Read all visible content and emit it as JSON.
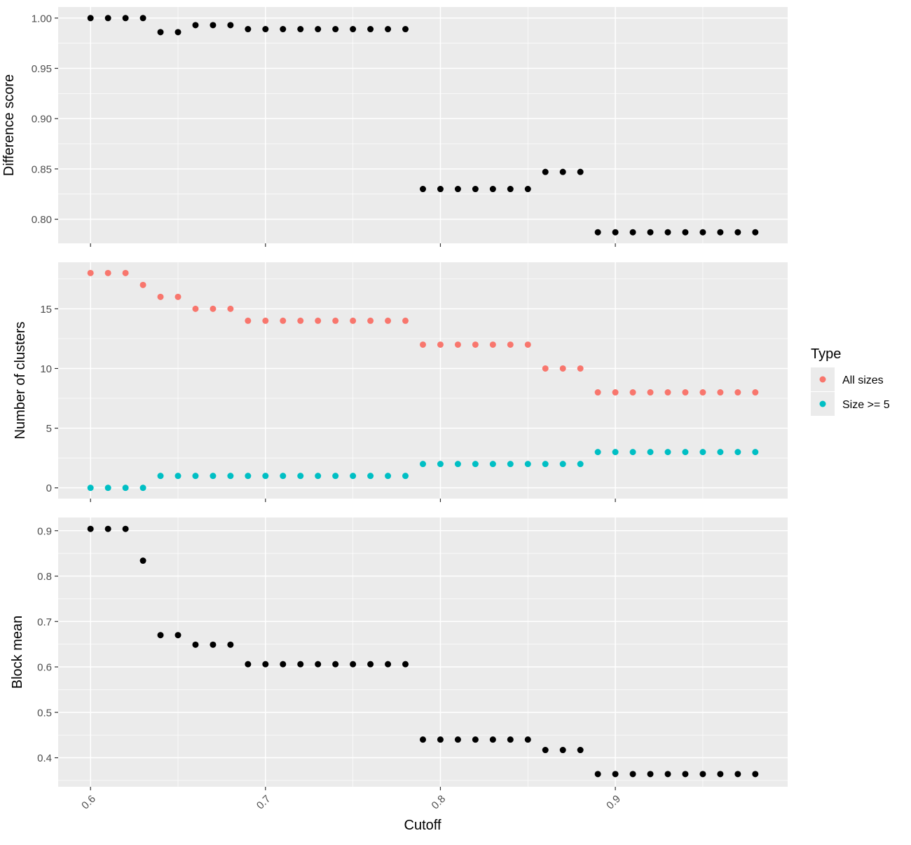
{
  "chart_data": {
    "type": "scatter",
    "x": [
      0.6,
      0.61,
      0.62,
      0.63,
      0.64,
      0.65,
      0.66,
      0.67,
      0.68,
      0.69,
      0.7,
      0.71,
      0.72,
      0.73,
      0.74,
      0.75,
      0.76,
      0.77,
      0.78,
      0.79,
      0.8,
      0.81,
      0.82,
      0.83,
      0.84,
      0.85,
      0.86,
      0.87,
      0.88,
      0.89,
      0.9,
      0.91,
      0.92,
      0.93,
      0.94,
      0.95,
      0.96,
      0.97,
      0.98
    ],
    "xlabel": "Cutoff",
    "xticks": [
      "0.6",
      "0.7",
      "0.8",
      "0.9"
    ],
    "xlim": [
      0.5815,
      0.9985
    ],
    "legend": {
      "title": "Type",
      "placement": "right",
      "entries": [
        {
          "label": "All sizes",
          "color": "#F8766D"
        },
        {
          "label": "Size >= 5",
          "color": "#00BFC4"
        }
      ]
    },
    "panels": [
      {
        "ylabel": "Difference score",
        "ylim": [
          0.776,
          1.011
        ],
        "yticks": [
          "0.80",
          "0.85",
          "0.90",
          "0.95",
          "1.00"
        ],
        "series": [
          {
            "color": "#000000",
            "values": [
              1.0,
              1.0,
              1.0,
              1.0,
              0.986,
              0.986,
              0.993,
              0.993,
              0.993,
              0.989,
              0.989,
              0.989,
              0.989,
              0.989,
              0.989,
              0.989,
              0.989,
              0.989,
              0.989,
              0.83,
              0.83,
              0.83,
              0.83,
              0.83,
              0.83,
              0.83,
              0.847,
              0.847,
              0.847,
              0.787,
              0.787,
              0.787,
              0.787,
              0.787,
              0.787,
              0.787,
              0.787,
              0.787,
              0.787
            ]
          }
        ]
      },
      {
        "ylabel": "Number of clusters",
        "ylim": [
          -0.9,
          18.9
        ],
        "yticks": [
          "0",
          "5",
          "10",
          "15"
        ],
        "series": [
          {
            "name": "All sizes",
            "color": "#F8766D",
            "values": [
              18,
              18,
              18,
              17,
              16,
              16,
              15,
              15,
              15,
              14,
              14,
              14,
              14,
              14,
              14,
              14,
              14,
              14,
              14,
              12,
              12,
              12,
              12,
              12,
              12,
              12,
              10,
              10,
              10,
              8,
              8,
              8,
              8,
              8,
              8,
              8,
              8,
              8,
              8
            ]
          },
          {
            "name": "Size >= 5",
            "color": "#00BFC4",
            "values": [
              0,
              0,
              0,
              0,
              1,
              1,
              1,
              1,
              1,
              1,
              1,
              1,
              1,
              1,
              1,
              1,
              1,
              1,
              1,
              2,
              2,
              2,
              2,
              2,
              2,
              2,
              2,
              2,
              2,
              3,
              3,
              3,
              3,
              3,
              3,
              3,
              3,
              3,
              3
            ]
          }
        ]
      },
      {
        "ylabel": "Block mean",
        "ylim": [
          0.336,
          0.929
        ],
        "yticks": [
          "0.4",
          "0.5",
          "0.6",
          "0.7",
          "0.8",
          "0.9"
        ],
        "series": [
          {
            "color": "#000000",
            "values": [
              0.904,
              0.904,
              0.904,
              0.834,
              0.67,
              0.67,
              0.649,
              0.649,
              0.649,
              0.606,
              0.606,
              0.606,
              0.606,
              0.606,
              0.606,
              0.606,
              0.606,
              0.606,
              0.606,
              0.44,
              0.44,
              0.44,
              0.44,
              0.44,
              0.44,
              0.44,
              0.417,
              0.417,
              0.417,
              0.364,
              0.364,
              0.364,
              0.364,
              0.364,
              0.364,
              0.364,
              0.364,
              0.364,
              0.364
            ]
          }
        ]
      }
    ]
  }
}
